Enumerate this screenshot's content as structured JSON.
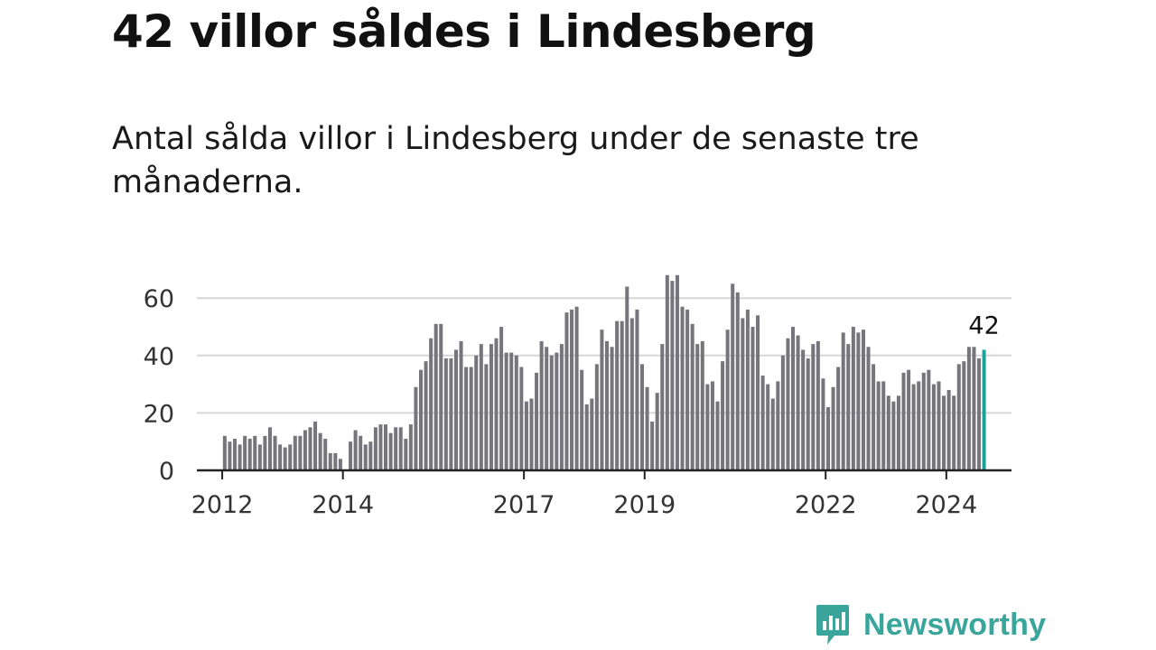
{
  "header": {
    "title": "42 villor såldes i Lindesberg",
    "subtitle": "Antal sålda villor i Lindesberg under de senaste tre månaderna."
  },
  "brand": {
    "name": "Newsworthy",
    "color": "#3aa59b",
    "icon": "newsworthy-chart-bubble-icon"
  },
  "chart_data": {
    "type": "bar",
    "title": "",
    "xlabel": "",
    "ylabel": "",
    "ylim": [
      0,
      70
    ],
    "yticks": [
      0,
      20,
      40,
      60
    ],
    "xlim": [
      2011.58,
      2025.08
    ],
    "xticks": [
      {
        "label": "2012",
        "year": 2012
      },
      {
        "label": "2014",
        "year": 2014
      },
      {
        "label": "2017",
        "year": 2017
      },
      {
        "label": "2019",
        "year": 2019
      },
      {
        "label": "2022",
        "year": 2022
      },
      {
        "label": "2024",
        "year": 2024
      }
    ],
    "grid": true,
    "bar_color": "#76757b",
    "highlight_color": "#1ba39b",
    "start_period": "2012-01",
    "periodicity": "monthly",
    "values": [
      12,
      10,
      11,
      9,
      12,
      11,
      12,
      9,
      12,
      15,
      12,
      9,
      8,
      9,
      12,
      12,
      14,
      15,
      17,
      13,
      11,
      6,
      6,
      4,
      0,
      10,
      14,
      12,
      9,
      10,
      15,
      16,
      16,
      13,
      15,
      15,
      11,
      16,
      29,
      35,
      38,
      46,
      51,
      51,
      39,
      39,
      42,
      45,
      36,
      36,
      40,
      44,
      37,
      44,
      46,
      50,
      41,
      41,
      40,
      36,
      24,
      25,
      34,
      45,
      43,
      40,
      41,
      44,
      55,
      56,
      57,
      35,
      23,
      25,
      37,
      49,
      45,
      43,
      52,
      52,
      64,
      53,
      56,
      37,
      29,
      17,
      27,
      44,
      68,
      66,
      68,
      57,
      56,
      51,
      44,
      45,
      30,
      31,
      24,
      38,
      49,
      65,
      62,
      53,
      56,
      50,
      54,
      33,
      30,
      25,
      31,
      40,
      46,
      50,
      47,
      42,
      39,
      44,
      45,
      32,
      22,
      29,
      36,
      48,
      44,
      50,
      48,
      49,
      43,
      37,
      31,
      31,
      26,
      24,
      26,
      34,
      35,
      30,
      31,
      34,
      35,
      30,
      31,
      26,
      28,
      26,
      37,
      38,
      43,
      43,
      39,
      42
    ],
    "last_value_label": "42"
  }
}
